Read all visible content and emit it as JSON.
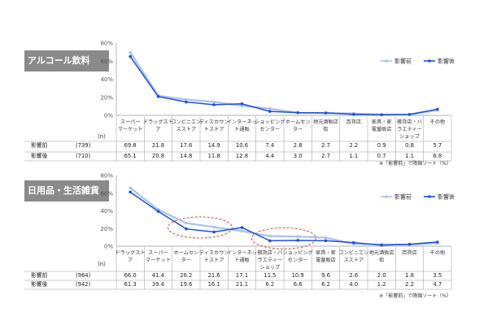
{
  "panels": [
    {
      "label": "アルコール飲料",
      "chart_data": {
        "type": "line",
        "categories": [
          [
            "スーパー",
            "マーケット"
          ],
          [
            "ドラッグスト",
            "ア"
          ],
          [
            "コンビニエン",
            "スストア"
          ],
          [
            "ディスカウン",
            "トストア"
          ],
          [
            "インターネッ",
            "ト通販"
          ],
          [
            "ショッピング",
            "センター"
          ],
          [
            "ホームセン",
            "ター"
          ],
          [
            "地元酒販店",
            "街"
          ],
          [
            "百貨店",
            ""
          ],
          [
            "家具・家",
            "電量販店"
          ],
          [
            "雑貨店・バ",
            "ラエティー",
            "ショップ"
          ],
          [
            "その他",
            ""
          ]
        ],
        "yticks": [
          "0%",
          "20%",
          "40%",
          "60%",
          "80%"
        ],
        "ylim": [
          0,
          80
        ],
        "n_header": "（n）",
        "series": [
          {
            "name": "影響前",
            "n": "(739)",
            "color": "#a9c2f0",
            "values": [
              69.8,
              21.8,
              17.6,
              14.9,
              10.6,
              7.4,
              2.8,
              2.7,
              2.2,
              0.9,
              0.8,
              5.7
            ],
            "labels": [
              "69.8",
              "21.8",
              "17.6",
              "14.9",
              "10.6",
              "7.4",
              "2.8",
              "2.7",
              "2.2",
              "0.9",
              "0.8",
              "5.7"
            ]
          },
          {
            "name": "影響後",
            "n": "(710)",
            "color": "#1f4fd9",
            "values": [
              65.1,
              20.8,
              14.8,
              11.8,
              12.8,
              4.4,
              3.0,
              2.7,
              1.1,
              0.7,
              1.1,
              6.8
            ],
            "labels": [
              "65.1",
              "20.8",
              "14.8",
              "11.8",
              "12.8",
              "4.4",
              "3.0",
              "2.7",
              "1.1",
              "0.7",
              "1.1",
              "6.8"
            ]
          }
        ],
        "note": "※「影響前」で降順ソート（%）",
        "highlights": []
      }
    },
    {
      "label": "日用品・生活雑貨",
      "chart_data": {
        "type": "line",
        "categories": [
          [
            "ドラッグスト",
            "ア"
          ],
          [
            "スーパー",
            "マーケット"
          ],
          [
            "ホームセン",
            "ター"
          ],
          [
            "ディスカウン",
            "トストア"
          ],
          [
            "インターネッ",
            "ト通販"
          ],
          [
            "雑貨店・バ",
            "ラエティー",
            "ショップ"
          ],
          [
            "ショッピング",
            "センター"
          ],
          [
            "家具・家",
            "電量販店"
          ],
          [
            "コンビニエン",
            "スストア"
          ],
          [
            "地元酒販店",
            "街"
          ],
          [
            "百貨店",
            ""
          ],
          [
            "その他",
            ""
          ]
        ],
        "yticks": [
          "0%",
          "20%",
          "40%",
          "60%",
          "80%"
        ],
        "ylim": [
          0,
          80
        ],
        "n_header": "（n）",
        "series": [
          {
            "name": "影響前",
            "n": "(964)",
            "color": "#a9c2f0",
            "values": [
              66.0,
              41.4,
              26.2,
              21.6,
              17.1,
              11.5,
              10.9,
              9.6,
              2.6,
              2.0,
              1.8,
              3.5
            ],
            "labels": [
              "66.0",
              "41.4",
              "26.2",
              "21.6",
              "17.1",
              "11.5",
              "10.9",
              "9.6",
              "2.6",
              "2.0",
              "1.8",
              "3.5"
            ]
          },
          {
            "name": "影響後",
            "n": "(942)",
            "color": "#1f4fd9",
            "values": [
              61.3,
              39.4,
              19.6,
              16.1,
              21.1,
              6.2,
              6.6,
              6.2,
              4.0,
              1.2,
              2.2,
              4.7
            ],
            "labels": [
              "61.3",
              "39.4",
              "19.6",
              "16.1",
              "21.1",
              "6.2",
              "6.6",
              "6.2",
              "4.0",
              "1.2",
              "2.2",
              "4.7"
            ]
          }
        ],
        "note": "※「影響前」で降順ソート（%）",
        "highlights": [
          [
            2,
            3
          ],
          [
            5,
            6
          ]
        ]
      }
    }
  ]
}
